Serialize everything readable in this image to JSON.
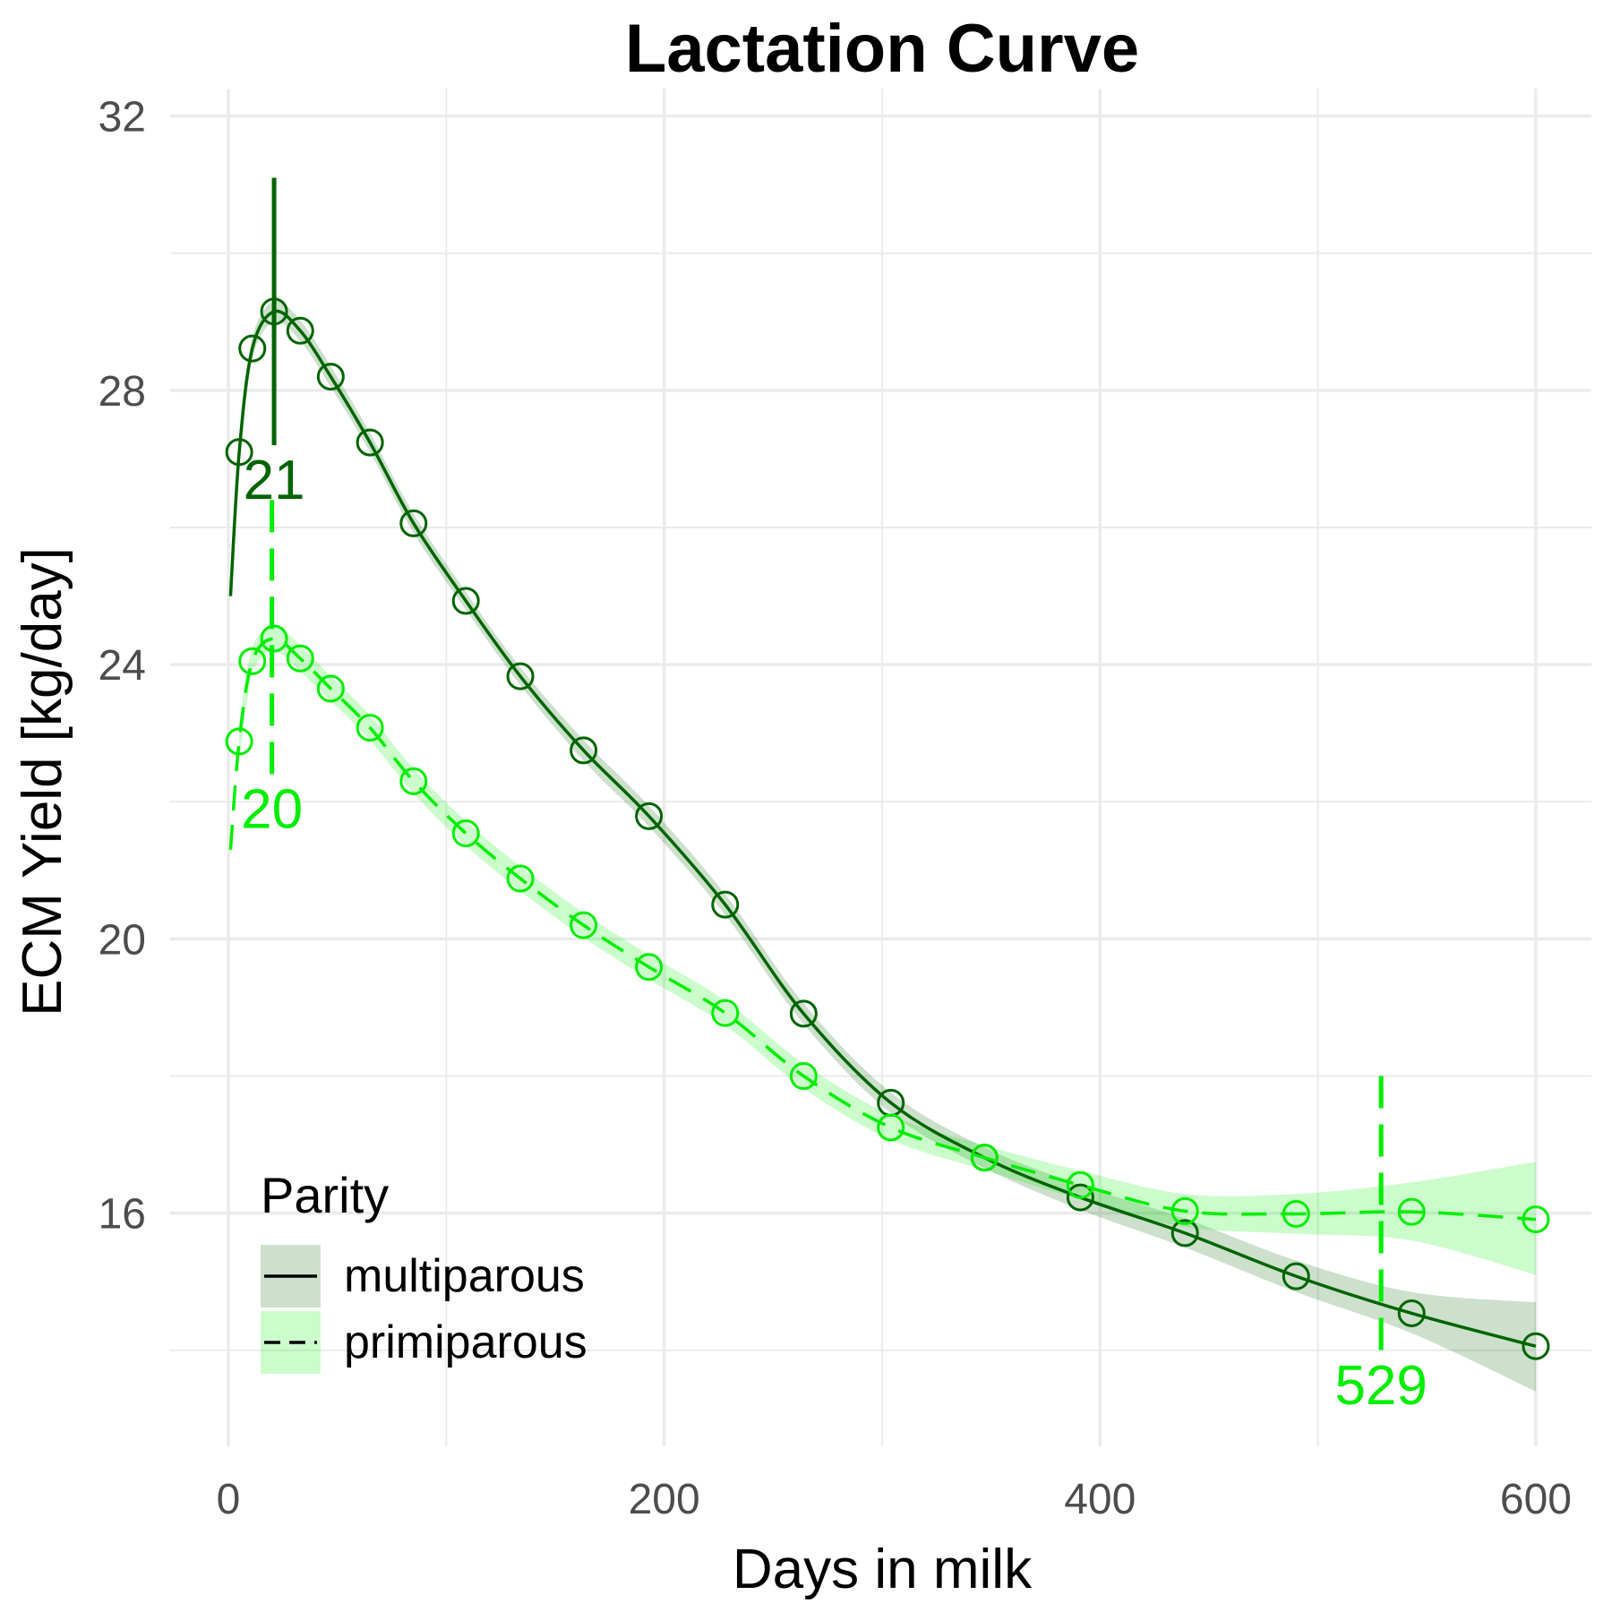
{
  "chart_data": {
    "type": "line",
    "title": "Lactation Curve",
    "x_label": "Days in milk",
    "y_label": "ECM Yield [kg/day]",
    "xlim": [
      -26.7,
      625.5
    ],
    "ylim": [
      12.6,
      32.4
    ],
    "xticks": [
      0,
      200,
      400,
      600
    ],
    "yticks": [
      16,
      20,
      24,
      28,
      32
    ],
    "x_minor_grid": [
      100,
      300,
      500
    ],
    "y_minor_grid": [
      14,
      18,
      22,
      26,
      30
    ],
    "grid": true,
    "legend_title": "Parity",
    "legend_position": "bottom-left",
    "series": [
      {
        "name": "multiparous",
        "color": "#006400",
        "dash": "solid",
        "fit_start": {
          "x": 1,
          "y": 25.0
        },
        "x": [
          5,
          11,
          21,
          33,
          47,
          65,
          85,
          109,
          134,
          163,
          193,
          228,
          264,
          304,
          347,
          391,
          439,
          490,
          543,
          600
        ],
        "values": [
          27.1,
          28.61,
          29.15,
          28.87,
          28.2,
          27.24,
          26.06,
          24.93,
          23.83,
          22.75,
          21.79,
          20.5,
          18.91,
          17.61,
          16.81,
          16.23,
          15.71,
          15.08,
          14.54,
          14.06
        ],
        "lower": [
          26.9,
          28.45,
          29.0,
          28.72,
          28.05,
          27.1,
          25.92,
          24.8,
          23.7,
          22.6,
          21.64,
          20.35,
          18.76,
          17.46,
          16.66,
          16.05,
          15.5,
          14.85,
          14.25,
          13.4
        ],
        "upper": [
          27.3,
          28.77,
          29.3,
          29.02,
          28.35,
          27.38,
          26.2,
          25.06,
          23.96,
          22.9,
          21.94,
          20.65,
          19.06,
          17.76,
          16.96,
          16.41,
          15.92,
          15.31,
          14.85,
          14.7
        ]
      },
      {
        "name": "primiparous",
        "color": "#00ee00",
        "dash": "dashed",
        "fit_start": {
          "x": 1,
          "y": 21.3
        },
        "x": [
          5,
          11,
          21,
          33,
          47,
          65,
          85,
          109,
          134,
          163,
          193,
          228,
          264,
          304,
          347,
          391,
          439,
          490,
          543,
          600
        ],
        "values": [
          22.88,
          24.05,
          24.38,
          24.09,
          23.65,
          23.08,
          22.3,
          21.54,
          20.88,
          20.2,
          19.59,
          18.92,
          18.0,
          17.25,
          16.81,
          16.41,
          16.03,
          15.99,
          16.02,
          15.91
        ],
        "lower": [
          22.6,
          23.85,
          24.2,
          23.9,
          23.47,
          22.9,
          22.12,
          21.36,
          20.7,
          20.02,
          19.41,
          18.74,
          17.82,
          17.07,
          16.63,
          16.2,
          15.8,
          15.7,
          15.6,
          15.1
        ],
        "upper": [
          23.16,
          24.25,
          24.56,
          24.28,
          23.83,
          23.26,
          22.48,
          21.72,
          21.06,
          20.38,
          19.77,
          19.1,
          18.18,
          17.43,
          16.99,
          16.62,
          16.28,
          16.28,
          16.45,
          16.75
        ]
      }
    ],
    "peaks": [
      {
        "x": 21,
        "y_from": 31.1,
        "y_to": 27.2,
        "color": "#006400",
        "dash": "solid"
      },
      {
        "x": 20,
        "y_from": 26.4,
        "y_to": 22.4,
        "color": "#00ee00",
        "dash": "dashed"
      },
      {
        "x": 529,
        "y_from": 18.0,
        "y_to": 14.0,
        "color": "#00ee00",
        "dash": "dashed"
      }
    ]
  }
}
